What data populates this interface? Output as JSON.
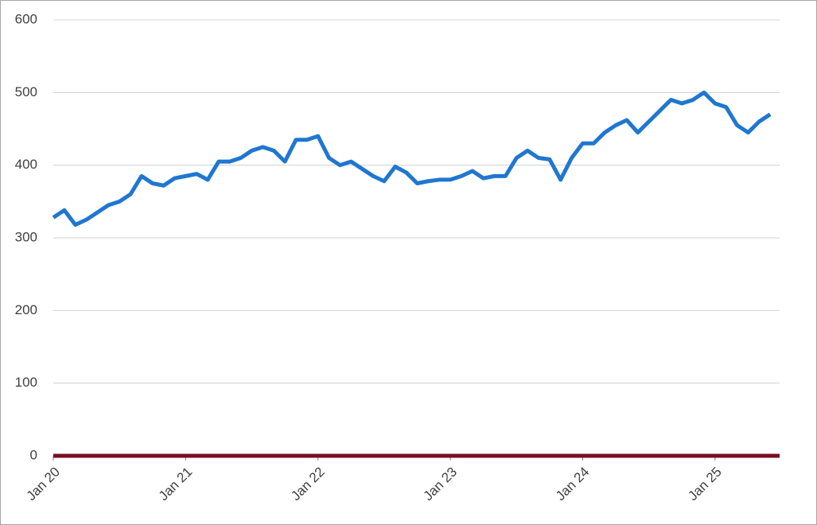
{
  "chart_data": {
    "type": "line",
    "x": [
      "2020-01",
      "2020-02",
      "2020-03",
      "2020-04",
      "2020-05",
      "2020-06",
      "2020-07",
      "2020-08",
      "2020-09",
      "2020-10",
      "2020-11",
      "2020-12",
      "2021-01",
      "2021-02",
      "2021-03",
      "2021-04",
      "2021-05",
      "2021-06",
      "2021-07",
      "2021-08",
      "2021-09",
      "2021-10",
      "2021-11",
      "2021-12",
      "2022-01",
      "2022-02",
      "2022-03",
      "2022-04",
      "2022-05",
      "2022-06",
      "2022-07",
      "2022-08",
      "2022-09",
      "2022-10",
      "2022-11",
      "2022-12",
      "2023-01",
      "2023-02",
      "2023-03",
      "2023-04",
      "2023-05",
      "2023-06",
      "2023-07",
      "2023-08",
      "2023-09",
      "2023-10",
      "2023-11",
      "2023-12",
      "2024-01",
      "2024-02",
      "2024-03",
      "2024-04",
      "2024-05",
      "2024-06",
      "2024-07",
      "2024-08",
      "2024-09",
      "2024-10",
      "2024-11",
      "2024-12",
      "2025-01",
      "2025-02",
      "2025-03",
      "2025-04",
      "2025-05",
      "2025-06"
    ],
    "series": [
      {
        "color": "#1f77d0",
        "values": [
          328,
          338,
          318,
          325,
          335,
          345,
          350,
          360,
          385,
          375,
          372,
          382,
          385,
          388,
          380,
          405,
          405,
          410,
          420,
          425,
          420,
          405,
          435,
          435,
          440,
          410,
          400,
          405,
          395,
          385,
          378,
          398,
          390,
          375,
          378,
          380,
          380,
          385,
          392,
          382,
          385,
          385,
          410,
          420,
          410,
          408,
          380,
          410,
          430,
          430,
          445,
          455,
          462,
          445,
          460,
          475,
          490,
          485,
          490,
          500,
          485,
          480,
          455,
          445,
          460,
          470
        ]
      }
    ],
    "xlim": [
      "2020-01",
      "2025-07"
    ],
    "xticks": [
      {
        "value": "2020-01",
        "label": "Jan 20"
      },
      {
        "value": "2021-01",
        "label": "Jan 21"
      },
      {
        "value": "2022-01",
        "label": "Jan 22"
      },
      {
        "value": "2023-01",
        "label": "Jan 23"
      },
      {
        "value": "2024-01",
        "label": "Jan 24"
      },
      {
        "value": "2025-01",
        "label": "Jan 25"
      }
    ],
    "ylim": [
      0,
      600
    ],
    "yticks": [
      0,
      100,
      200,
      300,
      400,
      500,
      600
    ],
    "grid": true,
    "axis_line_color": "#7b0c1f"
  }
}
